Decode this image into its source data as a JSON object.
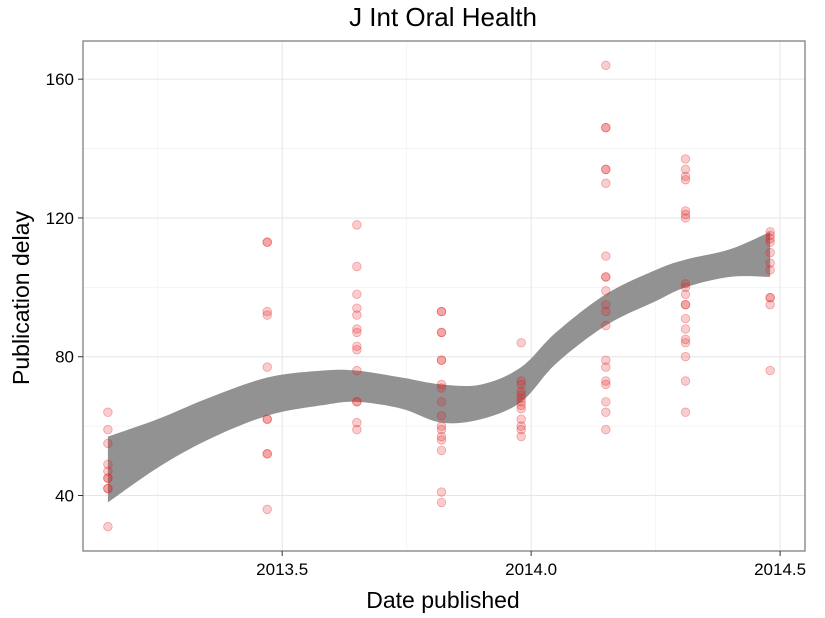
{
  "chart_data": {
    "type": "scatter",
    "title": "J Int Oral Health",
    "xlabel": "Date published",
    "ylabel": "Publication delay",
    "xlim": [
      2013.1,
      2014.55
    ],
    "ylim": [
      24,
      171
    ],
    "x_ticks": [
      2013.5,
      2014.0,
      2014.5
    ],
    "x_tick_labels": [
      "2013.5",
      "2014.0",
      "2014.5"
    ],
    "y_ticks": [
      40,
      80,
      120,
      160
    ],
    "y_tick_labels": [
      "40",
      "80",
      "120",
      "160"
    ],
    "grid": true,
    "point_color": "#e41a1c",
    "band_color": "#8c8c8c",
    "points": [
      {
        "x": 2013.15,
        "y": 31
      },
      {
        "x": 2013.15,
        "y": 42
      },
      {
        "x": 2013.15,
        "y": 42
      },
      {
        "x": 2013.15,
        "y": 45
      },
      {
        "x": 2013.15,
        "y": 45
      },
      {
        "x": 2013.15,
        "y": 47
      },
      {
        "x": 2013.15,
        "y": 49
      },
      {
        "x": 2013.15,
        "y": 55
      },
      {
        "x": 2013.15,
        "y": 59
      },
      {
        "x": 2013.15,
        "y": 64
      },
      {
        "x": 2013.47,
        "y": 36
      },
      {
        "x": 2013.47,
        "y": 52
      },
      {
        "x": 2013.47,
        "y": 52
      },
      {
        "x": 2013.47,
        "y": 62
      },
      {
        "x": 2013.47,
        "y": 62
      },
      {
        "x": 2013.47,
        "y": 77
      },
      {
        "x": 2013.47,
        "y": 92
      },
      {
        "x": 2013.47,
        "y": 93
      },
      {
        "x": 2013.47,
        "y": 113
      },
      {
        "x": 2013.47,
        "y": 113
      },
      {
        "x": 2013.65,
        "y": 59
      },
      {
        "x": 2013.65,
        "y": 61
      },
      {
        "x": 2013.65,
        "y": 67
      },
      {
        "x": 2013.65,
        "y": 67
      },
      {
        "x": 2013.65,
        "y": 76
      },
      {
        "x": 2013.65,
        "y": 82
      },
      {
        "x": 2013.65,
        "y": 83
      },
      {
        "x": 2013.65,
        "y": 87
      },
      {
        "x": 2013.65,
        "y": 88
      },
      {
        "x": 2013.65,
        "y": 92
      },
      {
        "x": 2013.65,
        "y": 94
      },
      {
        "x": 2013.65,
        "y": 98
      },
      {
        "x": 2013.65,
        "y": 106
      },
      {
        "x": 2013.65,
        "y": 118
      },
      {
        "x": 2013.82,
        "y": 38
      },
      {
        "x": 2013.82,
        "y": 41
      },
      {
        "x": 2013.82,
        "y": 53
      },
      {
        "x": 2013.82,
        "y": 56
      },
      {
        "x": 2013.82,
        "y": 57
      },
      {
        "x": 2013.82,
        "y": 59
      },
      {
        "x": 2013.82,
        "y": 60
      },
      {
        "x": 2013.82,
        "y": 63
      },
      {
        "x": 2013.82,
        "y": 67
      },
      {
        "x": 2013.82,
        "y": 71
      },
      {
        "x": 2013.82,
        "y": 72
      },
      {
        "x": 2013.82,
        "y": 79
      },
      {
        "x": 2013.82,
        "y": 79
      },
      {
        "x": 2013.82,
        "y": 87
      },
      {
        "x": 2013.82,
        "y": 87
      },
      {
        "x": 2013.82,
        "y": 93
      },
      {
        "x": 2013.82,
        "y": 93
      },
      {
        "x": 2013.98,
        "y": 57
      },
      {
        "x": 2013.98,
        "y": 59
      },
      {
        "x": 2013.98,
        "y": 60
      },
      {
        "x": 2013.98,
        "y": 62
      },
      {
        "x": 2013.98,
        "y": 65
      },
      {
        "x": 2013.98,
        "y": 66
      },
      {
        "x": 2013.98,
        "y": 67
      },
      {
        "x": 2013.98,
        "y": 68
      },
      {
        "x": 2013.98,
        "y": 69
      },
      {
        "x": 2013.98,
        "y": 70
      },
      {
        "x": 2013.98,
        "y": 72
      },
      {
        "x": 2013.98,
        "y": 73
      },
      {
        "x": 2013.98,
        "y": 84
      },
      {
        "x": 2014.15,
        "y": 59
      },
      {
        "x": 2014.15,
        "y": 64
      },
      {
        "x": 2014.15,
        "y": 67
      },
      {
        "x": 2014.15,
        "y": 72
      },
      {
        "x": 2014.15,
        "y": 73
      },
      {
        "x": 2014.15,
        "y": 77
      },
      {
        "x": 2014.15,
        "y": 79
      },
      {
        "x": 2014.15,
        "y": 89
      },
      {
        "x": 2014.15,
        "y": 93
      },
      {
        "x": 2014.15,
        "y": 95
      },
      {
        "x": 2014.15,
        "y": 99
      },
      {
        "x": 2014.15,
        "y": 103
      },
      {
        "x": 2014.15,
        "y": 103
      },
      {
        "x": 2014.15,
        "y": 109
      },
      {
        "x": 2014.15,
        "y": 130
      },
      {
        "x": 2014.15,
        "y": 134
      },
      {
        "x": 2014.15,
        "y": 134
      },
      {
        "x": 2014.15,
        "y": 146
      },
      {
        "x": 2014.15,
        "y": 146
      },
      {
        "x": 2014.15,
        "y": 164
      },
      {
        "x": 2014.31,
        "y": 64
      },
      {
        "x": 2014.31,
        "y": 73
      },
      {
        "x": 2014.31,
        "y": 80
      },
      {
        "x": 2014.31,
        "y": 84
      },
      {
        "x": 2014.31,
        "y": 85
      },
      {
        "x": 2014.31,
        "y": 88
      },
      {
        "x": 2014.31,
        "y": 91
      },
      {
        "x": 2014.31,
        "y": 95
      },
      {
        "x": 2014.31,
        "y": 95
      },
      {
        "x": 2014.31,
        "y": 98
      },
      {
        "x": 2014.31,
        "y": 100
      },
      {
        "x": 2014.31,
        "y": 101
      },
      {
        "x": 2014.31,
        "y": 120
      },
      {
        "x": 2014.31,
        "y": 121
      },
      {
        "x": 2014.31,
        "y": 122
      },
      {
        "x": 2014.31,
        "y": 131
      },
      {
        "x": 2014.31,
        "y": 132
      },
      {
        "x": 2014.31,
        "y": 134
      },
      {
        "x": 2014.31,
        "y": 137
      },
      {
        "x": 2014.48,
        "y": 76
      },
      {
        "x": 2014.48,
        "y": 95
      },
      {
        "x": 2014.48,
        "y": 97
      },
      {
        "x": 2014.48,
        "y": 97
      },
      {
        "x": 2014.48,
        "y": 105
      },
      {
        "x": 2014.48,
        "y": 107
      },
      {
        "x": 2014.48,
        "y": 110
      },
      {
        "x": 2014.48,
        "y": 113
      },
      {
        "x": 2014.48,
        "y": 114
      },
      {
        "x": 2014.48,
        "y": 115
      },
      {
        "x": 2014.48,
        "y": 116
      }
    ],
    "smooth_band": {
      "x": [
        2013.15,
        2013.25,
        2013.35,
        2013.47,
        2013.58,
        2013.65,
        2013.74,
        2013.82,
        2013.9,
        2013.98,
        2014.05,
        2014.15,
        2014.25,
        2014.31,
        2014.4,
        2014.48
      ],
      "upper": [
        57,
        62,
        68,
        74,
        76,
        76,
        74,
        72,
        72,
        77,
        87,
        98,
        105,
        108,
        111,
        116
      ],
      "lower": [
        38,
        48,
        56,
        63,
        66,
        67,
        65,
        61,
        62,
        67,
        78,
        89,
        96,
        100,
        103,
        103
      ]
    }
  }
}
